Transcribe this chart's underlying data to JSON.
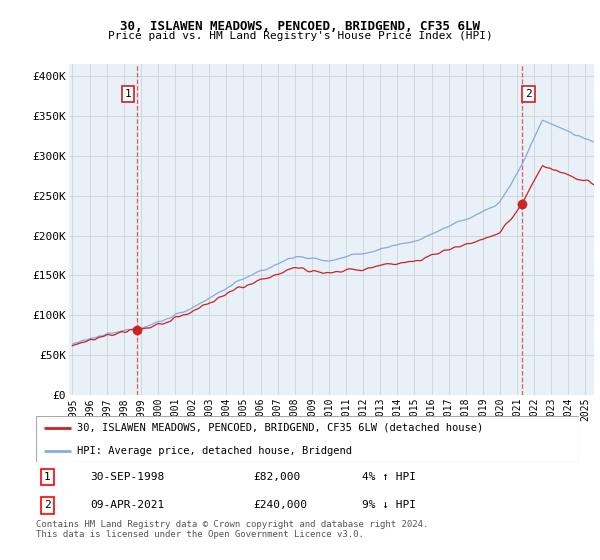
{
  "title": "30, ISLAWEN MEADOWS, PENCOED, BRIDGEND, CF35 6LW",
  "subtitle": "Price paid vs. HM Land Registry's House Price Index (HPI)",
  "ylabel_ticks": [
    "£0",
    "£50K",
    "£100K",
    "£150K",
    "£200K",
    "£250K",
    "£300K",
    "£350K",
    "£400K"
  ],
  "ytick_values": [
    0,
    50000,
    100000,
    150000,
    200000,
    250000,
    300000,
    350000,
    400000
  ],
  "ylim": [
    0,
    415000
  ],
  "xlim_start": 1994.8,
  "xlim_end": 2025.5,
  "hpi_color": "#88aadd",
  "price_color": "#cc2222",
  "vline_color": "#dd4444",
  "grid_color": "#cccccc",
  "bg_color": "#e8f0f8",
  "legend_line1": "30, ISLAWEN MEADOWS, PENCOED, BRIDGEND, CF35 6LW (detached house)",
  "legend_line2": "HPI: Average price, detached house, Bridgend",
  "sale1_label": "1",
  "sale1_date": "30-SEP-1998",
  "sale1_price": "£82,000",
  "sale1_hpi": "4% ↑ HPI",
  "sale1_year": 1998.75,
  "sale1_value": 82000,
  "sale2_label": "2",
  "sale2_date": "09-APR-2021",
  "sale2_price": "£240,000",
  "sale2_hpi": "9% ↓ HPI",
  "sale2_year": 2021.27,
  "sale2_value": 240000,
  "footnote": "Contains HM Land Registry data © Crown copyright and database right 2024.\nThis data is licensed under the Open Government Licence v3.0.",
  "xtick_years": [
    "1995",
    "1996",
    "1997",
    "1998",
    "1999",
    "2000",
    "2001",
    "2002",
    "2003",
    "2004",
    "2005",
    "2006",
    "2007",
    "2008",
    "2009",
    "2010",
    "2011",
    "2012",
    "2013",
    "2014",
    "2015",
    "2016",
    "2017",
    "2018",
    "2019",
    "2020",
    "2021",
    "2022",
    "2023",
    "2024",
    "2025"
  ]
}
